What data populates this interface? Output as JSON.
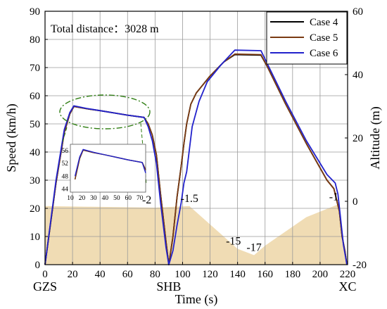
{
  "chart_data": {
    "type": "line",
    "xlabel": "Time (s)",
    "ylabel": "Speed (km/h)",
    "y2label": "Altitude (m)",
    "xlim": [
      0,
      220
    ],
    "ylim": [
      0,
      90
    ],
    "y2lim": [
      -20,
      60
    ],
    "xticks": [
      0,
      20,
      40,
      60,
      80,
      100,
      120,
      140,
      160,
      180,
      200,
      220
    ],
    "yticks": [
      0,
      10,
      20,
      30,
      40,
      50,
      60,
      70,
      80,
      90
    ],
    "y2ticks": [
      -20,
      0,
      20,
      40,
      60
    ],
    "grid": true,
    "legend_position": "top-right",
    "station_labels": [
      {
        "x": 0,
        "label": "GZS"
      },
      {
        "x": 90,
        "label": "SHB"
      },
      {
        "x": 220,
        "label": "XC"
      }
    ],
    "annotation": "Total distance：3028 m",
    "altitude_labels": [
      {
        "x": 74,
        "y": -2,
        "label": "-2"
      },
      {
        "x": 105,
        "y": -1.5,
        "label": "-1.5"
      },
      {
        "x": 137,
        "y": -15,
        "label": "-15"
      },
      {
        "x": 152,
        "y": -17,
        "label": "-17"
      },
      {
        "x": 210,
        "y": -1,
        "label": "-1"
      }
    ],
    "altitude_profile": {
      "name": "Altitude",
      "color": "#f0dcb4",
      "x": [
        0,
        80,
        90,
        105,
        140,
        152,
        160,
        190,
        213,
        220
      ],
      "y": [
        -1.5,
        -2,
        -1.8,
        -1.5,
        -15,
        -17,
        -14,
        -5,
        -1,
        -20
      ]
    },
    "series": [
      {
        "name": "Case 4",
        "color": "#000000",
        "x": [
          0,
          8,
          14,
          18,
          21,
          30,
          40,
          50,
          60,
          72,
          75,
          78,
          81,
          84,
          88,
          90,
          93,
          96,
          99,
          101,
          103,
          106,
          110,
          120,
          130,
          138,
          157,
          162,
          175,
          190,
          205,
          210,
          212,
          214,
          216,
          218,
          219.5
        ],
        "y": [
          0,
          29,
          47,
          53.5,
          56.2,
          55.4,
          54.7,
          53.9,
          53.1,
          52.3,
          50,
          46,
          39,
          25,
          8,
          0,
          10,
          24,
          35,
          43,
          50,
          57,
          61,
          67,
          72,
          74.6,
          74.4,
          70,
          57,
          43,
          30,
          27,
          23,
          19,
          10,
          5,
          0
        ]
      },
      {
        "name": "Case 5",
        "color": "#7a3a12",
        "x": [
          0,
          8,
          14,
          18,
          21,
          30,
          40,
          50,
          60,
          72,
          75,
          78,
          81,
          84,
          88,
          90,
          93,
          96,
          99,
          101,
          103,
          106,
          110,
          120,
          130,
          138,
          157,
          162,
          175,
          190,
          205,
          210,
          212,
          214,
          216,
          218,
          219.5
        ],
        "y": [
          0,
          29,
          47,
          53.5,
          56.2,
          55.4,
          54.7,
          53.9,
          53.1,
          52.3,
          50,
          46,
          39,
          25,
          8,
          0,
          10,
          24,
          35,
          43,
          50,
          57,
          61,
          67,
          72,
          74.8,
          74.6,
          70,
          57,
          43,
          30,
          27,
          23,
          19,
          10,
          5,
          0
        ]
      },
      {
        "name": "Case 6",
        "color": "#2222cc",
        "x": [
          0,
          8,
          14,
          18,
          21,
          30,
          40,
          50,
          60,
          72,
          75,
          78,
          81,
          84,
          88,
          90,
          93,
          96,
          99,
          101,
          103,
          107,
          112,
          118,
          128,
          138,
          157,
          162,
          175,
          190,
          205,
          211,
          213,
          215,
          217,
          219.5
        ],
        "y": [
          0,
          30,
          48,
          54,
          56.4,
          55.5,
          54.7,
          53.9,
          53.1,
          52.3,
          49,
          44,
          36,
          22,
          6,
          0,
          5,
          14,
          22,
          29,
          33,
          49,
          58,
          65,
          71,
          76.2,
          76,
          71,
          58,
          44,
          32,
          29,
          25,
          16,
          7,
          0
        ]
      }
    ],
    "inset": {
      "xlim": [
        10,
        75
      ],
      "ylim": [
        43,
        58
      ],
      "xticks": [
        10,
        20,
        30,
        40,
        50,
        60,
        70
      ],
      "yticks": [
        44,
        48,
        52,
        56
      ]
    }
  }
}
